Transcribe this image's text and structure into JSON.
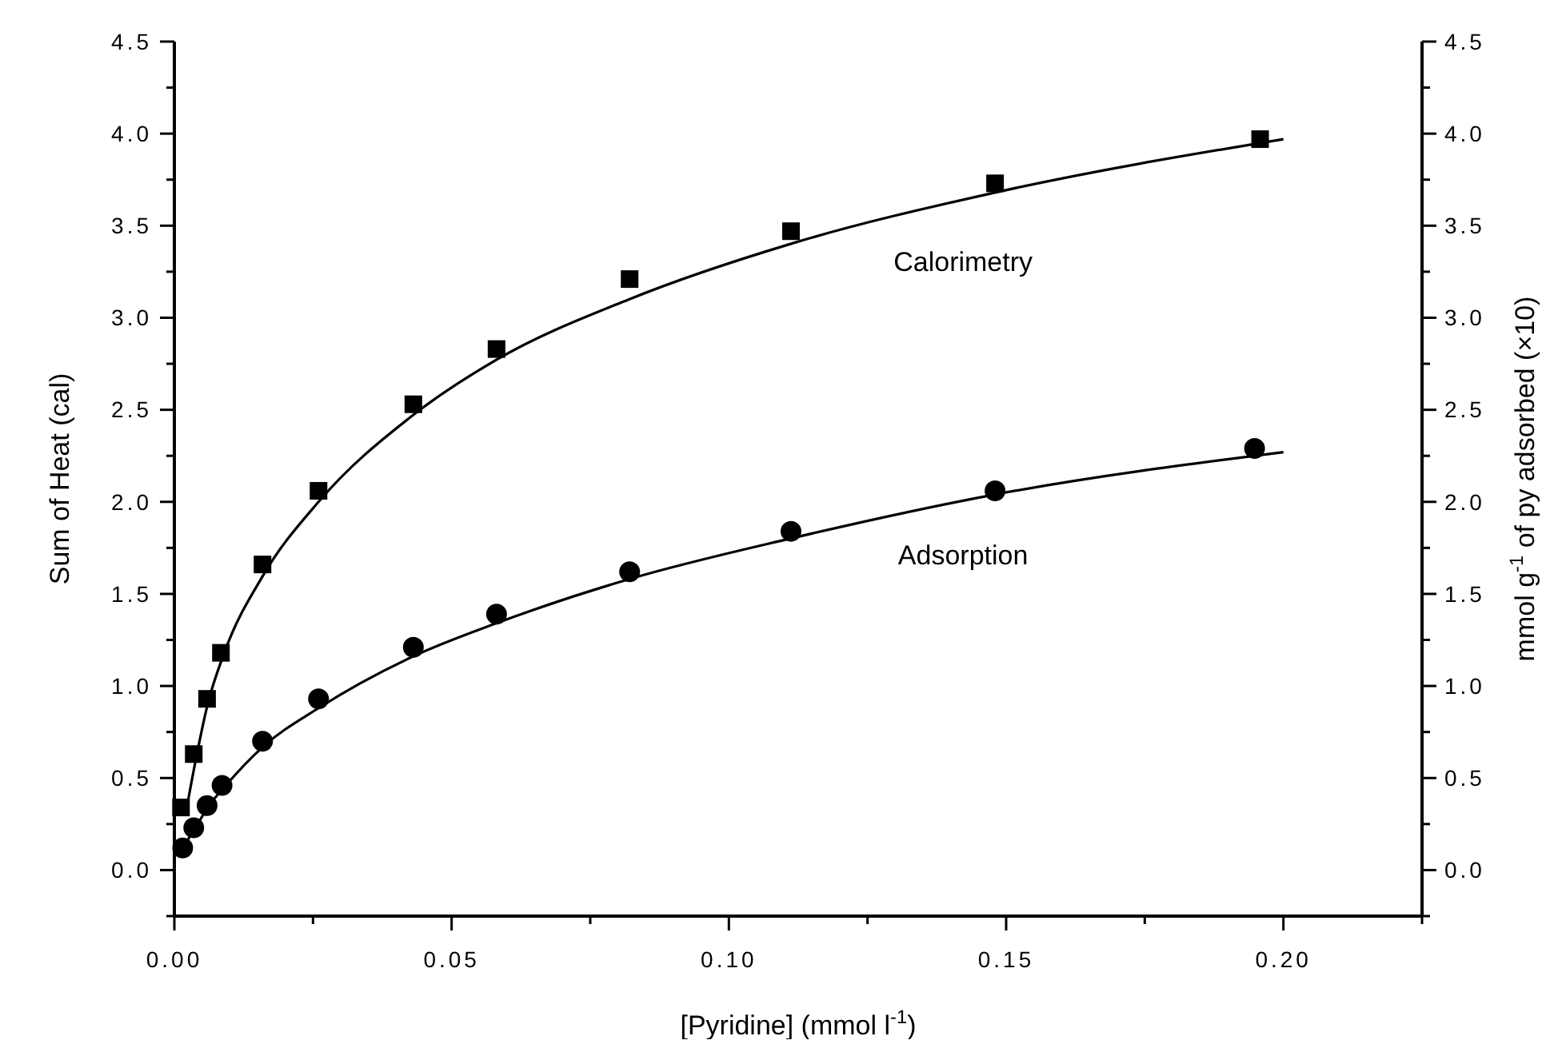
{
  "chart_data": {
    "type": "scatter",
    "xlabel": "[Pyridine] (mmol l$^{-1}$)",
    "ylabel": "Sum of Heat (cal)",
    "y2label": "mmol g$^{-1}$ of py adsorbed (×10)",
    "xlim": [
      0,
      0.225
    ],
    "xticks": [
      {
        "value": 0,
        "label": "0.00"
      },
      {
        "value": 0.025,
        "label": null
      },
      {
        "value": 0.05,
        "label": "0.05"
      },
      {
        "value": 0.075,
        "label": null
      },
      {
        "value": 0.1,
        "label": "0.10"
      },
      {
        "value": 0.125,
        "label": null
      },
      {
        "value": 0.15,
        "label": "0.15"
      },
      {
        "value": 0.175,
        "label": null
      },
      {
        "value": 0.2,
        "label": "0.20"
      },
      {
        "value": 0.225,
        "label": null
      }
    ],
    "ylim": [
      -0.25,
      4.5
    ],
    "yticks": [
      {
        "value": -0.25,
        "label": null
      },
      {
        "value": 0,
        "label": "0.0"
      },
      {
        "value": 0.25,
        "label": null
      },
      {
        "value": 0.5,
        "label": "0.5"
      },
      {
        "value": 0.75,
        "label": null
      },
      {
        "value": 1,
        "label": "1.0"
      },
      {
        "value": 1.25,
        "label": null
      },
      {
        "value": 1.5,
        "label": "1.5"
      },
      {
        "value": 1.75,
        "label": null
      },
      {
        "value": 2,
        "label": "2.0"
      },
      {
        "value": 2.25,
        "label": null
      },
      {
        "value": 2.5,
        "label": "2.5"
      },
      {
        "value": 2.75,
        "label": null
      },
      {
        "value": 3,
        "label": "3.0"
      },
      {
        "value": 3.25,
        "label": null
      },
      {
        "value": 3.5,
        "label": "3.5"
      },
      {
        "value": 3.75,
        "label": null
      },
      {
        "value": 4,
        "label": "4.0"
      },
      {
        "value": 4.25,
        "label": null
      },
      {
        "value": 4.5,
        "label": "4.5"
      }
    ],
    "y2lim": [
      -0.25,
      4.5
    ],
    "y2ticks": [
      {
        "value": -0.25,
        "label": null
      },
      {
        "value": 0,
        "label": "0.0"
      },
      {
        "value": 0.25,
        "label": null
      },
      {
        "value": 0.5,
        "label": "0.5"
      },
      {
        "value": 0.75,
        "label": null
      },
      {
        "value": 1,
        "label": "1.0"
      },
      {
        "value": 1.25,
        "label": null
      },
      {
        "value": 1.5,
        "label": "1.5"
      },
      {
        "value": 1.75,
        "label": null
      },
      {
        "value": 2,
        "label": "2.0"
      },
      {
        "value": 2.25,
        "label": null
      },
      {
        "value": 2.5,
        "label": "2.5"
      },
      {
        "value": 2.75,
        "label": null
      },
      {
        "value": 3,
        "label": "3.0"
      },
      {
        "value": 3.25,
        "label": null
      },
      {
        "value": 3.5,
        "label": "3.5"
      },
      {
        "value": 3.75,
        "label": null
      },
      {
        "value": 4,
        "label": "4.0"
      },
      {
        "value": 4.25,
        "label": null
      },
      {
        "value": 4.5,
        "label": "4.5"
      }
    ],
    "grid": false,
    "series": [
      {
        "name": "Calorimetry",
        "marker": "square",
        "color": "#000000",
        "x": [
          0.0012,
          0.0035,
          0.0059,
          0.0084,
          0.0159,
          0.026,
          0.0431,
          0.0581,
          0.0821,
          0.1112,
          0.148,
          0.1958
        ],
        "values": [
          0.34,
          0.63,
          0.93,
          1.18,
          1.66,
          2.06,
          2.53,
          2.83,
          3.21,
          3.47,
          3.73,
          3.97
        ]
      },
      {
        "type": "line",
        "line_style": "solid",
        "color": "#000000",
        "x": [
          0.002,
          0.004,
          0.006,
          0.009,
          0.016,
          0.026,
          0.043,
          0.058,
          0.082,
          0.111,
          0.148,
          0.2
        ],
        "values": [
          0.3,
          0.62,
          0.9,
          1.18,
          1.6,
          2.0,
          2.47,
          2.77,
          3.1,
          3.4,
          3.68,
          3.97
        ]
      },
      {
        "name": "Adsorption",
        "marker": "circle",
        "axis": "y2",
        "color": "#000000",
        "x": [
          0.0015,
          0.0035,
          0.0059,
          0.0086,
          0.0159,
          0.026,
          0.0431,
          0.0581,
          0.0821,
          0.1112,
          0.148,
          0.1948
        ],
        "values": [
          0.12,
          0.23,
          0.35,
          0.46,
          0.7,
          0.93,
          1.21,
          1.39,
          1.62,
          1.84,
          2.06,
          2.29
        ]
      },
      {
        "type": "line",
        "line_style": "solid",
        "axis": "y2",
        "color": "#000000",
        "x": [
          0.0015,
          0.004,
          0.006,
          0.009,
          0.016,
          0.026,
          0.043,
          0.058,
          0.082,
          0.111,
          0.148,
          0.2
        ],
        "values": [
          0.12,
          0.24,
          0.34,
          0.45,
          0.67,
          0.88,
          1.16,
          1.34,
          1.58,
          1.8,
          2.04,
          2.27
        ]
      }
    ]
  }
}
